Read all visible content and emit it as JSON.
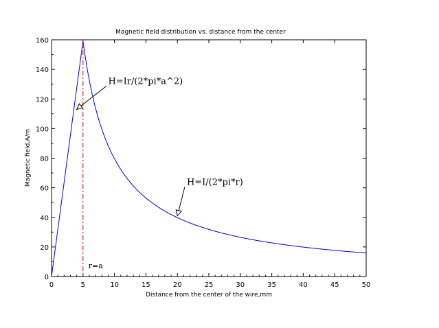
{
  "chart_data": {
    "type": "line",
    "title": "Magnetic field distribution vs. distance from the center",
    "xlabel": "Distance from the center of the wire,mm",
    "ylabel": "Magnetic field,A/m",
    "xlim": [
      0,
      50
    ],
    "ylim": [
      0,
      160
    ],
    "x_ticks": [
      0,
      5,
      10,
      15,
      20,
      25,
      30,
      35,
      40,
      45,
      50
    ],
    "y_ticks": [
      0,
      20,
      40,
      60,
      80,
      100,
      120,
      140,
      160
    ],
    "x_tick_labels": [
      "0",
      "5",
      "10",
      "15",
      "20",
      "25",
      "30",
      "35",
      "40",
      "45",
      "50"
    ],
    "y_tick_labels": [
      "0",
      "20",
      "40",
      "60",
      "80",
      "100",
      "120",
      "140",
      "160"
    ],
    "grid": false,
    "series": [
      {
        "color": "#0000cc",
        "peak_radius": 5,
        "peak_value": 159.2,
        "x": [
          0,
          5,
          6,
          7,
          8,
          9,
          10,
          11,
          12,
          13,
          14,
          15,
          16,
          18,
          20,
          22,
          25,
          28,
          30,
          32,
          35,
          38,
          40,
          42,
          45,
          48,
          50
        ],
        "y": [
          0,
          159.2,
          132.6,
          113.7,
          99.5,
          88.4,
          79.6,
          72.3,
          66.3,
          61.2,
          56.8,
          53.1,
          49.7,
          44.2,
          39.8,
          36.2,
          31.8,
          28.4,
          26.5,
          24.9,
          22.7,
          20.9,
          19.9,
          18.9,
          17.7,
          16.6,
          15.9
        ]
      }
    ],
    "vertical_line": {
      "x": 5,
      "label": "r=a",
      "color": "#cc0000",
      "style": "dash-dot"
    },
    "annotations": [
      {
        "text": "H=Ir/(2*pi*a^2)",
        "arrow_to_x": 4,
        "arrow_to_y": 113,
        "text_x": 9,
        "text_y": 130
      },
      {
        "text": "H=I/(2*pi*r)",
        "arrow_to_x": 20,
        "arrow_to_y": 41,
        "text_x": 21.5,
        "text_y": 62
      }
    ]
  }
}
